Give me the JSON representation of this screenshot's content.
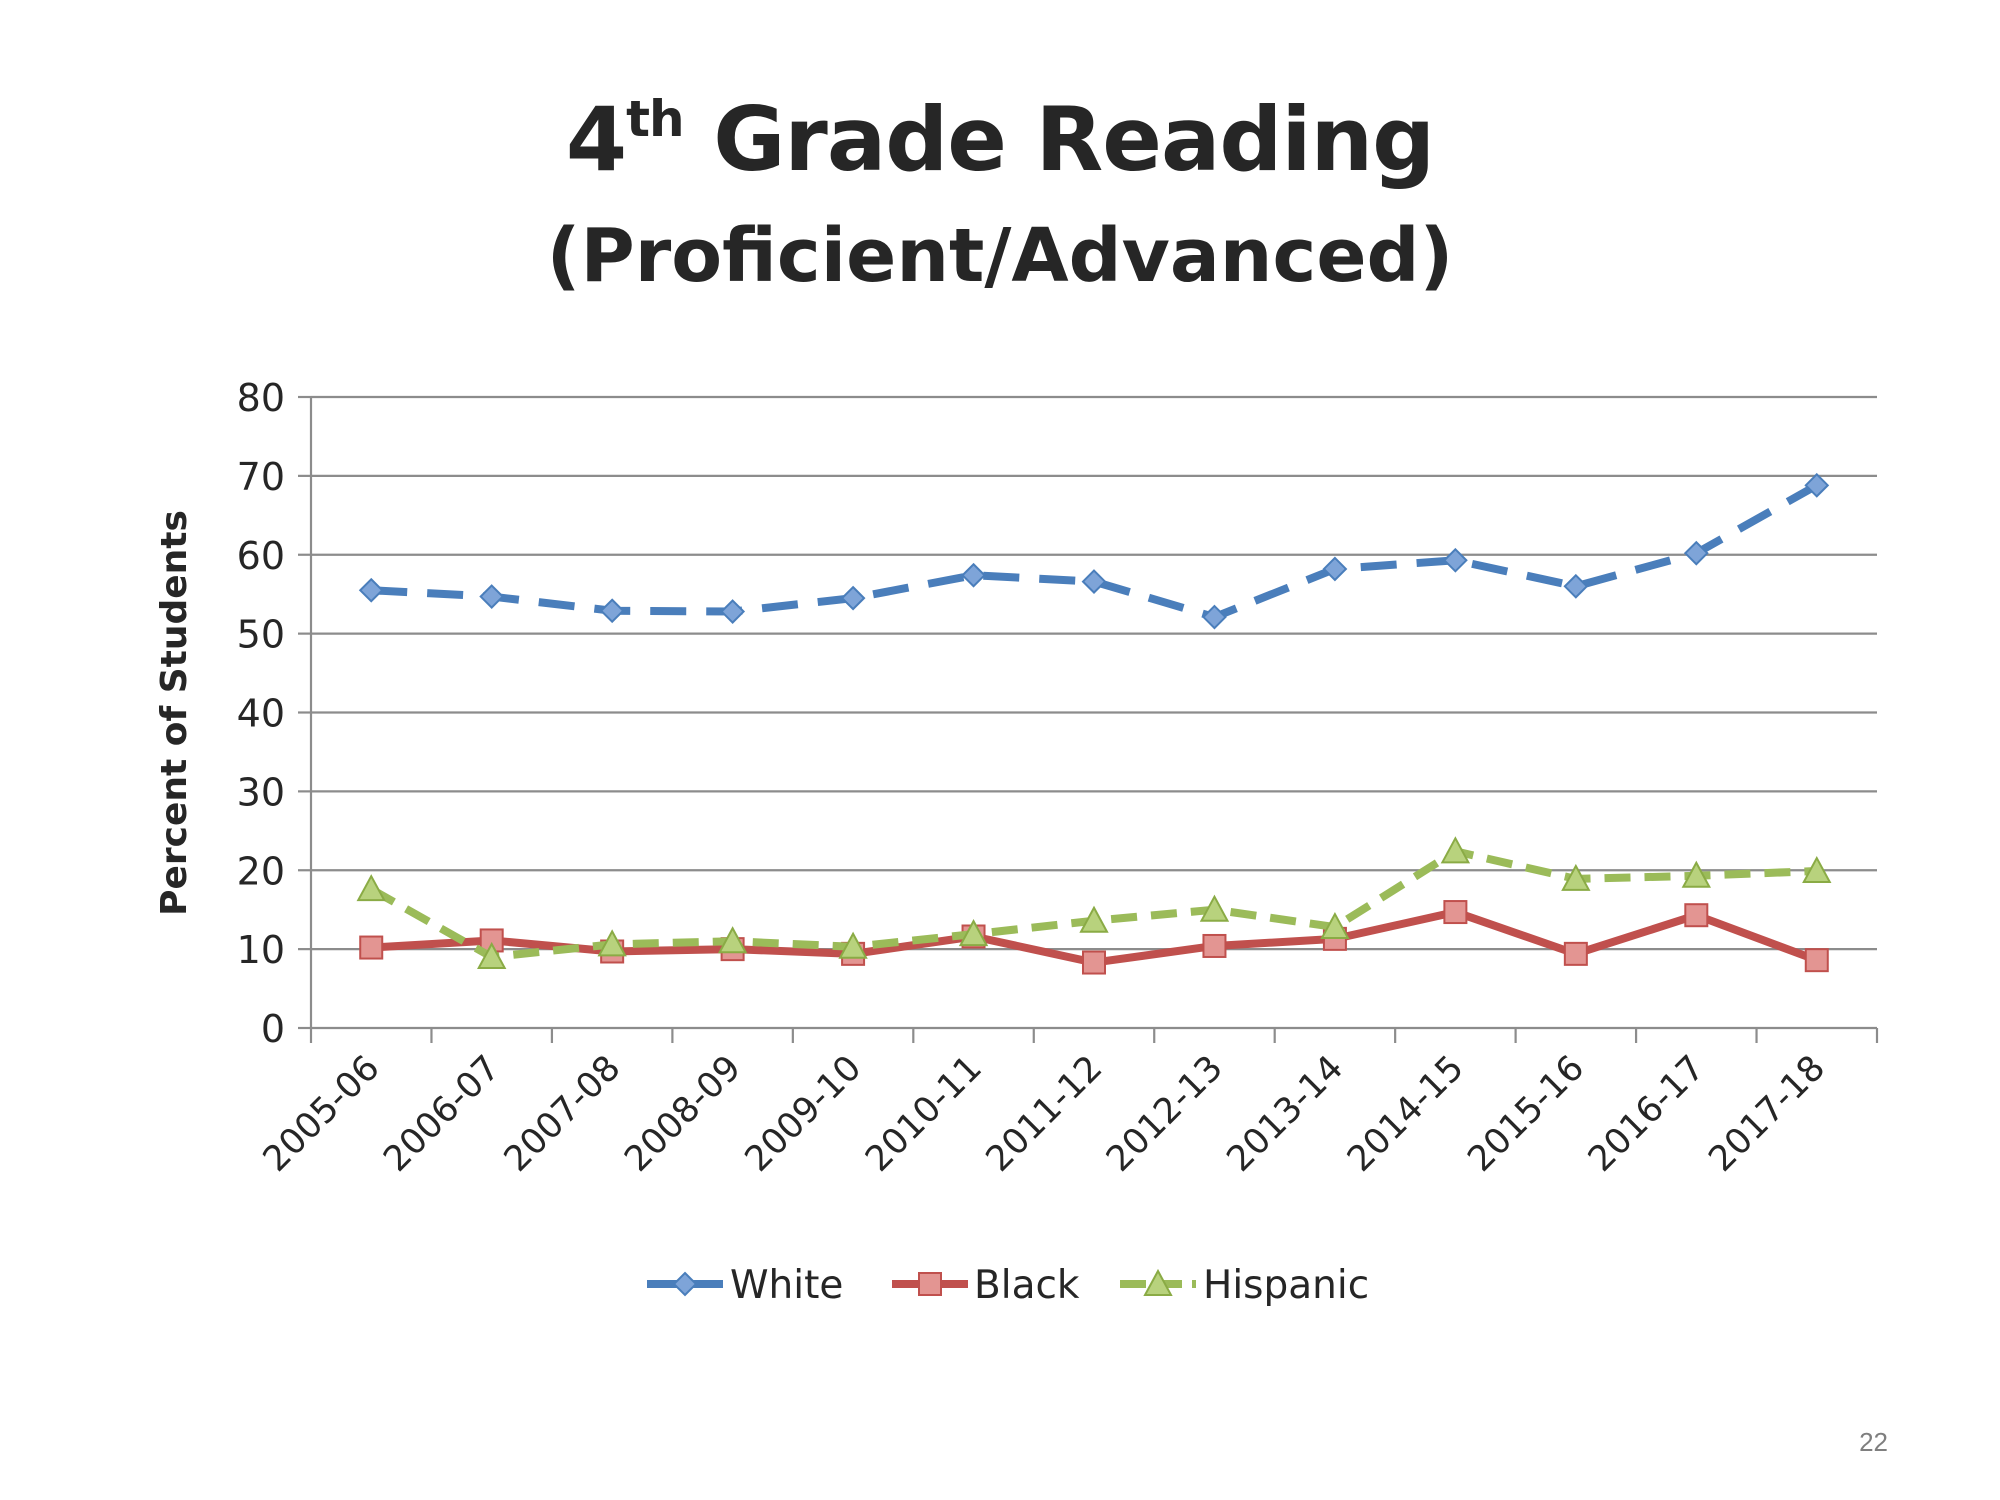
{
  "slide": {
    "title_main": "4",
    "title_sup": "th",
    "title_rest": " Grade Reading",
    "subtitle": "(Proficient/Advanced)",
    "page_number": "22"
  },
  "chart_data": {
    "type": "line",
    "title": "4th Grade Reading (Proficient/Advanced)",
    "xlabel": "",
    "ylabel": "Percent of Students",
    "ylim": [
      0,
      80
    ],
    "yticks": [
      0,
      10,
      20,
      30,
      40,
      50,
      60,
      70,
      80
    ],
    "grid": true,
    "legend_position": "bottom",
    "categories": [
      "2005-06",
      "2006-07",
      "2007-08",
      "2008-09",
      "2009-10",
      "2010-11",
      "2011-12",
      "2012-13",
      "2013-14",
      "2014-15",
      "2015-16",
      "2016-17",
      "2017-18"
    ],
    "series": [
      {
        "name": "White",
        "color": "#4a7ebb",
        "line_style": "dashed",
        "marker": "diamond",
        "values": [
          55.5,
          54.7,
          52.9,
          52.8,
          54.5,
          57.4,
          56.6,
          52.1,
          58.2,
          59.3,
          56.0,
          60.2,
          68.8
        ]
      },
      {
        "name": "Black",
        "color": "#c0504d",
        "line_style": "solid",
        "marker": "square",
        "values": [
          10.2,
          11.1,
          9.7,
          10.0,
          9.4,
          11.6,
          8.3,
          10.4,
          11.3,
          14.7,
          9.4,
          14.3,
          8.6
        ]
      },
      {
        "name": "Hispanic",
        "color": "#9bbb59",
        "line_style": "dashed",
        "marker": "triangle",
        "values": [
          17.6,
          9.0,
          10.6,
          11.0,
          10.3,
          11.9,
          13.6,
          15.0,
          12.8,
          22.4,
          18.9,
          19.3,
          19.9
        ]
      }
    ]
  }
}
